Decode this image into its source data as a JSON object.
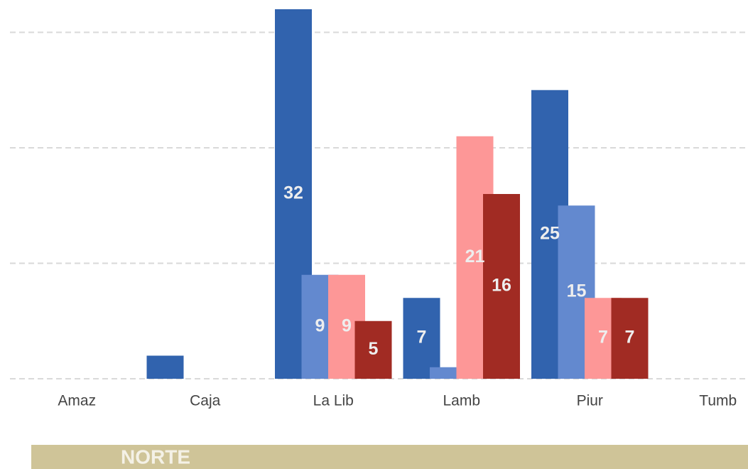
{
  "chart_data": {
    "type": "bar",
    "categories": [
      "Amaz",
      "Caja",
      "La Lib",
      "Lamb",
      "Piur",
      "Tumb"
    ],
    "series": [
      {
        "color": "#3163ae",
        "values": [
          null,
          2,
          32,
          7,
          25,
          null
        ],
        "value_labels": [
          null,
          null,
          "32",
          "7",
          "25",
          null
        ]
      },
      {
        "color": "#6389cf",
        "values": [
          null,
          null,
          9,
          1,
          15,
          null
        ],
        "value_labels": [
          null,
          null,
          "9",
          null,
          "15",
          null
        ]
      },
      {
        "color": "#fd9797",
        "values": [
          null,
          null,
          9,
          21,
          7,
          null
        ],
        "value_labels": [
          null,
          null,
          "9",
          "21",
          "7",
          null
        ]
      },
      {
        "color": "#a12b23",
        "values": [
          null,
          null,
          5,
          16,
          7,
          null
        ],
        "value_labels": [
          null,
          null,
          "5",
          "16",
          "7",
          null
        ]
      }
    ],
    "ylim": [
      0,
      32.8
    ],
    "yticks": [
      0,
      10,
      20,
      30
    ],
    "grid": true,
    "panel_label": "NORTE"
  }
}
